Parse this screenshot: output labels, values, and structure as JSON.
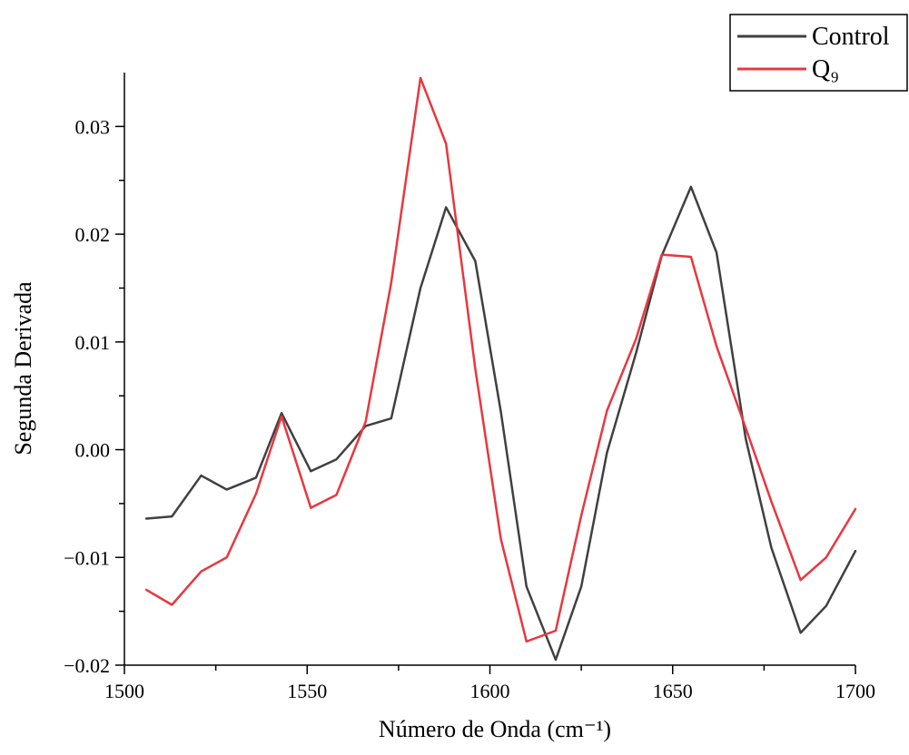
{
  "chart_data": {
    "type": "line",
    "xlabel": "Número de Onda (cm⁻¹)",
    "ylabel": "Segunda Derivada",
    "xlim": [
      1500,
      1700
    ],
    "ylim": [
      -0.02,
      0.035
    ],
    "x_ticks": [
      1500,
      1550,
      1600,
      1650,
      1700
    ],
    "x_tick_labels": [
      "1500",
      "1550",
      "1600",
      "1650",
      "1700"
    ],
    "y_ticks": [
      -0.02,
      -0.01,
      0.0,
      0.01,
      0.02,
      0.03
    ],
    "y_tick_labels": [
      "−0.02",
      "−0.01",
      "0.00",
      "0.01",
      "0.02",
      "0.03"
    ],
    "grid": false,
    "legend_position": "top-right",
    "series": [
      {
        "name": "Control",
        "color": "#404040",
        "x": [
          1506,
          1513,
          1521,
          1528,
          1536,
          1543,
          1551,
          1558,
          1566,
          1573,
          1581,
          1588,
          1596,
          1603,
          1610,
          1618,
          1625,
          1632,
          1640,
          1647,
          1655,
          1662,
          1670,
          1677,
          1685,
          1692,
          1700
        ],
        "y": [
          -0.0064,
          -0.0062,
          -0.0024,
          -0.0037,
          -0.0026,
          0.0034,
          -0.002,
          -0.0009,
          0.0022,
          0.0029,
          0.015,
          0.0225,
          0.0175,
          0.0035,
          -0.0127,
          -0.0195,
          -0.0127,
          -0.0003,
          0.009,
          0.018,
          0.0244,
          0.0183,
          0.001,
          -0.0091,
          -0.017,
          -0.0145,
          -0.0094
        ]
      },
      {
        "name": "Q₉",
        "color": "#e8373f",
        "x": [
          1506,
          1513,
          1521,
          1528,
          1536,
          1543,
          1551,
          1558,
          1566,
          1573,
          1581,
          1588,
          1596,
          1603,
          1610,
          1618,
          1625,
          1632,
          1640,
          1647,
          1655,
          1662,
          1670,
          1677,
          1685,
          1692,
          1700
        ],
        "y": [
          -0.013,
          -0.0144,
          -0.0113,
          -0.01,
          -0.0041,
          0.0031,
          -0.0054,
          -0.0042,
          0.0026,
          0.0155,
          0.0345,
          0.0284,
          0.0075,
          -0.0083,
          -0.0178,
          -0.0168,
          -0.0061,
          0.0036,
          0.0103,
          0.0181,
          0.0179,
          0.0096,
          0.002,
          -0.0048,
          -0.0121,
          -0.01,
          -0.0055
        ]
      }
    ]
  }
}
